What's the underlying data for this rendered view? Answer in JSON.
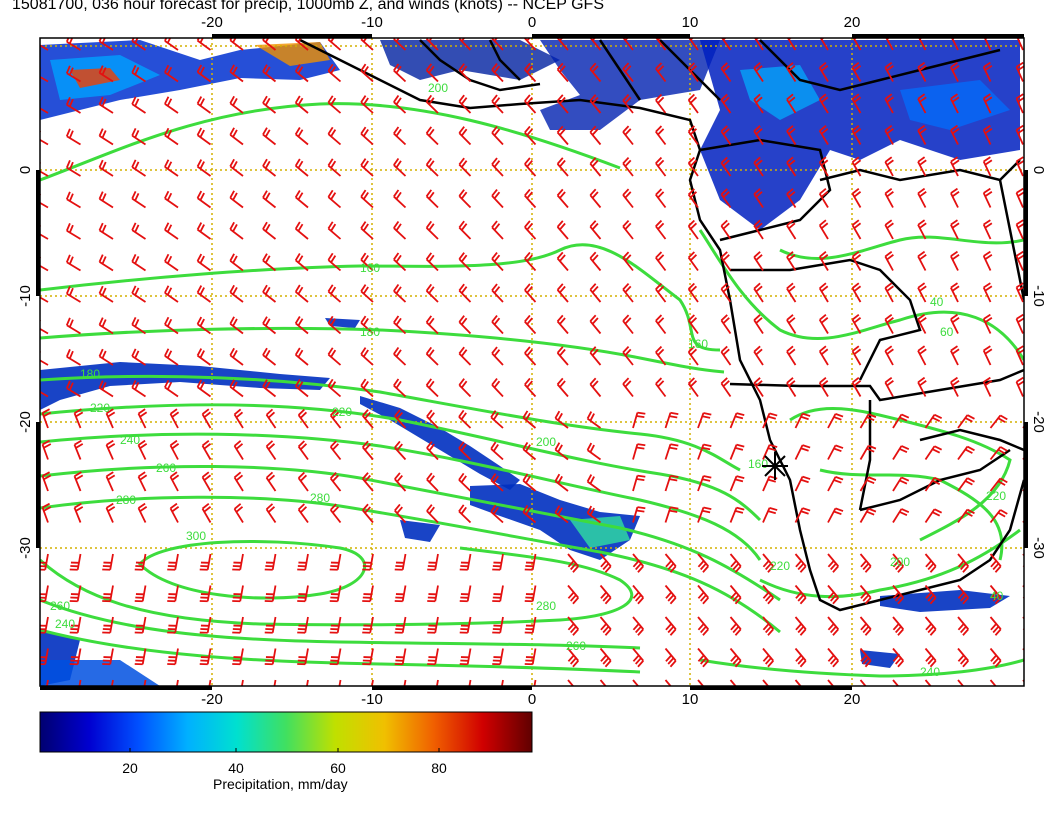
{
  "title": "15081700, 036 hour forecast for precip, 1000mb Z, and winds (knots) -- NCEP GFS",
  "axes": {
    "lon_ticks": [
      "-20",
      "-10",
      "0",
      "10",
      "20"
    ],
    "lat_ticks": [
      "0",
      "-10",
      "-20",
      "-30"
    ]
  },
  "contour_labels": [
    "160",
    "160",
    "180",
    "180",
    "220",
    "220",
    "220",
    "240",
    "240",
    "260",
    "260",
    "260",
    "280",
    "280",
    "280",
    "300",
    "200",
    "160",
    "40",
    "60",
    "40",
    "240",
    "220",
    "200",
    "200"
  ],
  "colorbar": {
    "label": "Precipitation, mm/day",
    "ticks": [
      "20",
      "40",
      "60",
      "80"
    ],
    "colors": [
      "#000070",
      "#0000d0",
      "#0050ff",
      "#00b0ff",
      "#00e0d0",
      "#40e060",
      "#c0e000",
      "#f0c000",
      "#f06000",
      "#d00000",
      "#600000"
    ]
  }
}
